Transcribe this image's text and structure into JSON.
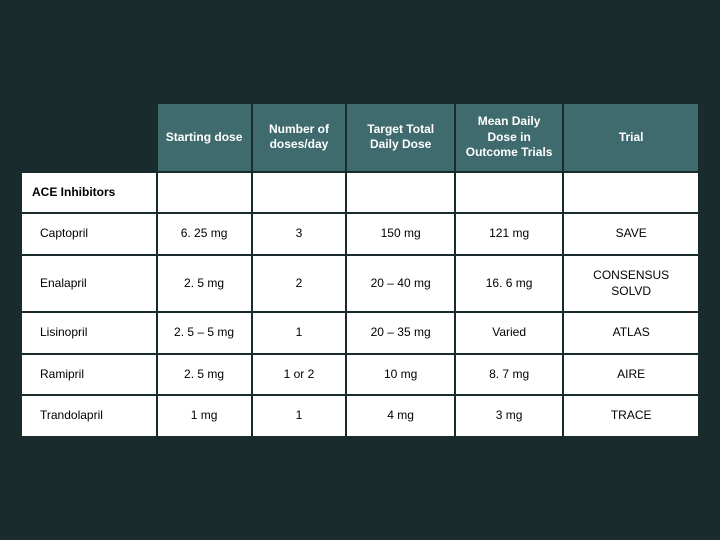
{
  "table": {
    "background_color": "#1a2b2e",
    "header_bg": "#3f6b6f",
    "header_fg": "#ffffff",
    "cell_bg": "#ffffff",
    "cell_fg": "#000000",
    "border_color": "#1a2b2e",
    "font_size_pt": 12,
    "columns": [
      {
        "key": "label",
        "header": "",
        "width_pct": 20
      },
      {
        "key": "start",
        "header": "Starting dose",
        "width_pct": 14
      },
      {
        "key": "num",
        "header": "Number of doses/day",
        "width_pct": 14
      },
      {
        "key": "target",
        "header": "Target Total Daily Dose",
        "width_pct": 16
      },
      {
        "key": "mean",
        "header": "Mean Daily Dose in Outcome Trials",
        "width_pct": 16
      },
      {
        "key": "trial",
        "header": "Trial",
        "width_pct": 20
      }
    ],
    "section_label": "ACE Inhibitors",
    "rows": [
      {
        "label": "Captopril",
        "start": "6. 25 mg",
        "num": "3",
        "target": "150 mg",
        "mean": "121 mg",
        "trial": "SAVE"
      },
      {
        "label": "Enalapril",
        "start": "2. 5 mg",
        "num": "2",
        "target": "20 – 40 mg",
        "mean": "16. 6 mg",
        "trial": "CONSENSUS SOLVD"
      },
      {
        "label": "Lisinopril",
        "start": "2. 5 – 5 mg",
        "num": "1",
        "target": "20 – 35 mg",
        "mean": "Varied",
        "trial": "ATLAS"
      },
      {
        "label": "Ramipril",
        "start": "2. 5 mg",
        "num": "1 or 2",
        "target": "10 mg",
        "mean": "8. 7 mg",
        "trial": "AIRE"
      },
      {
        "label": "Trandolapril",
        "start": "1 mg",
        "num": "1",
        "target": "4 mg",
        "mean": "3 mg",
        "trial": "TRACE"
      }
    ]
  }
}
